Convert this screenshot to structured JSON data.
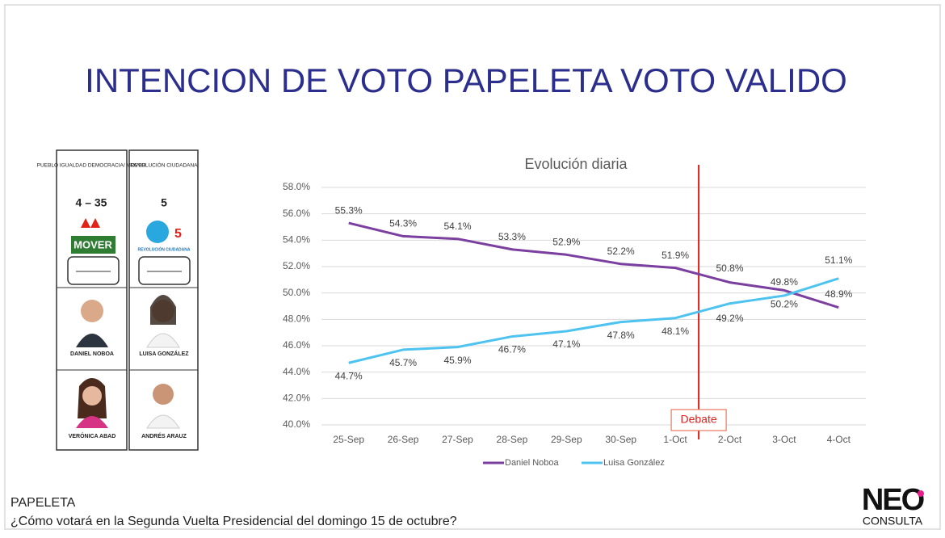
{
  "header": {
    "title": "INTENCION DE VOTO PAPELETA VOTO VALIDO"
  },
  "ballot": {
    "left": {
      "party": "PUEBLO IGUALDAD DEMOCRACIA/ MOVER",
      "list": "4 – 35",
      "logo": "MOVER",
      "candidate1": "DANIEL NOBOA",
      "candidate2": "VERÓNICA ABAD"
    },
    "right": {
      "party": "REVOLUCIÓN CIUDADANA",
      "list": "5",
      "logo": "REVOLUCIÓN CIUDADANA",
      "candidate1": "LUISA GONZÁLEZ",
      "candidate2": "ANDRÉS ARAUZ"
    }
  },
  "chart_data": {
    "type": "line",
    "title": "Evolución diaria",
    "annotation": "Debate",
    "categories": [
      "25-Sep",
      "26-Sep",
      "27-Sep",
      "28-Sep",
      "29-Sep",
      "30-Sep",
      "1-Oct",
      "2-Oct",
      "3-Oct",
      "4-Oct"
    ],
    "series": [
      {
        "name": "Daniel Noboa",
        "color": "#7b3fa0",
        "values": [
          55.3,
          54.3,
          54.1,
          53.3,
          52.9,
          52.2,
          51.9,
          50.8,
          50.2,
          48.9
        ],
        "value_labels": [
          "55.3%",
          "54.3%",
          "54.1%",
          "53.3%",
          "52.9%",
          "52.2%",
          "51.9%",
          "50.8%",
          "50.2%",
          "48.9%"
        ]
      },
      {
        "name": "Luisa González",
        "color": "#4fc3f0",
        "values": [
          44.7,
          45.7,
          45.9,
          46.7,
          47.1,
          47.8,
          48.1,
          49.2,
          49.8,
          51.1
        ],
        "value_labels": [
          "44.7%",
          "45.7%",
          "45.9%",
          "46.7%",
          "47.1%",
          "47.8%",
          "48.1%",
          "49.2%",
          "49.8%",
          "51.1%"
        ]
      }
    ],
    "ylim": [
      40,
      58
    ],
    "yticks": [
      {
        "value": 40,
        "label": "40.0%"
      },
      {
        "value": 42,
        "label": "42.0%"
      },
      {
        "value": 44,
        "label": "44.0%"
      },
      {
        "value": 46,
        "label": "46.0%"
      },
      {
        "value": 48,
        "label": "48.0%"
      },
      {
        "value": 50,
        "label": "50.0%"
      },
      {
        "value": 52,
        "label": "52.0%"
      },
      {
        "value": 54,
        "label": "54.0%"
      },
      {
        "value": 56,
        "label": "56.0%"
      },
      {
        "value": 58,
        "label": "58.0%"
      }
    ],
    "grid": true,
    "legend": "bottom"
  },
  "footer": {
    "label": "PAPELETA",
    "question": "¿Cómo votará en la Segunda Vuelta Presidencial del domingo 15 de octubre?"
  },
  "logo": {
    "name": "NEO",
    "sub": "CONSULTA"
  }
}
